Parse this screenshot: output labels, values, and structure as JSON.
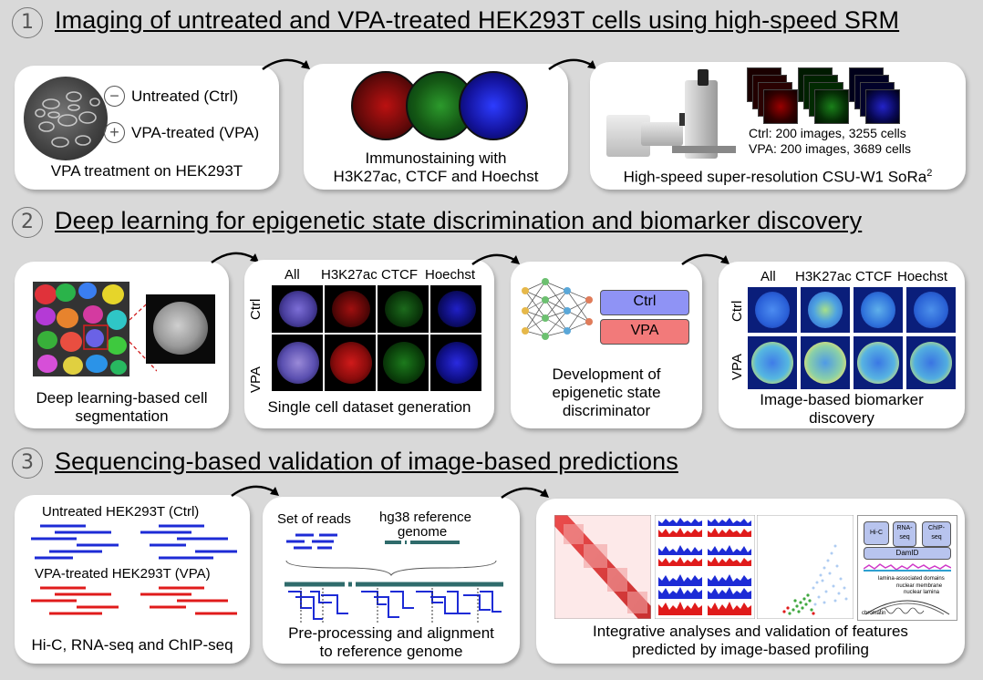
{
  "sections": [
    {
      "number": "1",
      "title": "Imaging of untreated and VPA-treated HEK293T cells using high-speed SRM"
    },
    {
      "number": "2",
      "title": "Deep learning for epigenetic state discrimination and biomarker discovery"
    },
    {
      "number": "3",
      "title": "Sequencing-based validation of image-based predictions"
    }
  ],
  "s1": {
    "p1": {
      "minus_symbol": "−",
      "plus_symbol": "+",
      "untreated": "Untreated (Ctrl)",
      "treated": "VPA-treated (VPA)",
      "caption": "VPA treatment on HEK293T"
    },
    "p2": {
      "caption_line1": "Immunostaining with",
      "caption_line2": "H3K27ac, CTCF and Hoechst"
    },
    "p3": {
      "stat_ctrl": "Ctrl: 200 images, 3255 cells",
      "stat_vpa": "VPA: 200 images, 3689 cells",
      "caption": "High-speed super-resolution CSU-W1 SoRa",
      "caption_sup": "2"
    }
  },
  "s2": {
    "p1": {
      "caption_line1": "Deep learning-based cell",
      "caption_line2": "segmentation"
    },
    "p2": {
      "col_all": "All",
      "col_h3k27ac": "H3K27ac",
      "col_ctcf": "CTCF",
      "col_hoechst": "Hoechst",
      "row_ctrl": "Ctrl",
      "row_vpa": "VPA",
      "caption": "Single cell dataset generation"
    },
    "p3": {
      "box_ctrl": "Ctrl",
      "box_vpa": "VPA",
      "caption_line1": "Development of",
      "caption_line2": "epigenetic state",
      "caption_line3": "discriminator"
    },
    "p4": {
      "col_all": "All",
      "col_h3k27ac": "H3K27ac",
      "col_ctcf": "CTCF",
      "col_hoechst": "Hoechst",
      "row_ctrl": "Ctrl",
      "row_vpa": "VPA",
      "caption_line1": "Image-based biomarker",
      "caption_line2": "discovery"
    }
  },
  "s3": {
    "p1": {
      "label_ctrl": "Untreated HEK293T (Ctrl)",
      "label_vpa": "VPA-treated HEK293T (VPA)",
      "caption": "Hi-C, RNA-seq and ChIP-seq"
    },
    "p2": {
      "label_reads": "Set of reads",
      "label_ref_line1": "hg38 reference",
      "label_ref_line2": "genome",
      "caption_line1": "Pre-processing and alignment",
      "caption_line2": "to reference genome"
    },
    "p3": {
      "mini_hic": "Hi-C",
      "mini_rnaseq_line1": "RNA-",
      "mini_rnaseq_line2": "seq",
      "mini_chipseq_line1": "ChIP-",
      "mini_chipseq_line2": "seq",
      "mini_damid": "DamID",
      "mini_lad": "lamina-associated domains",
      "mini_membrane": "nuclear membrane",
      "mini_lamina": "nuclear lamina",
      "mini_chromatin": "chromatin",
      "caption_line1": "Integrative analyses and validation of features",
      "caption_line2": "predicted by image-based profiling"
    }
  },
  "colors": {
    "background": "#d9d9d9",
    "ctrl_box": "#8f93f5",
    "vpa_box": "#f27a7a",
    "ctrl_read": "#1d2bd6",
    "vpa_read": "#e01b1b",
    "genome": "#2f6b6b"
  }
}
